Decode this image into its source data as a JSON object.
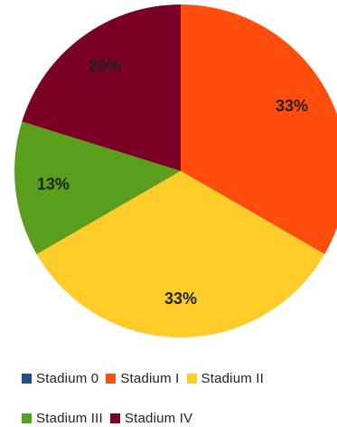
{
  "chart_data": {
    "type": "pie",
    "categories": [
      "Stadium 0",
      "Stadium I",
      "Stadium II",
      "Stadium III",
      "Stadium IV"
    ],
    "values": [
      0,
      33,
      33,
      13,
      20
    ],
    "data_labels": [
      "",
      "33%",
      "33%",
      "13%",
      "20%"
    ],
    "colors": [
      "#1f4e8c",
      "#ff4d0d",
      "#ffcc29",
      "#5a9e1e",
      "#7b0026"
    ],
    "legend_position": "bottom",
    "title": ""
  }
}
